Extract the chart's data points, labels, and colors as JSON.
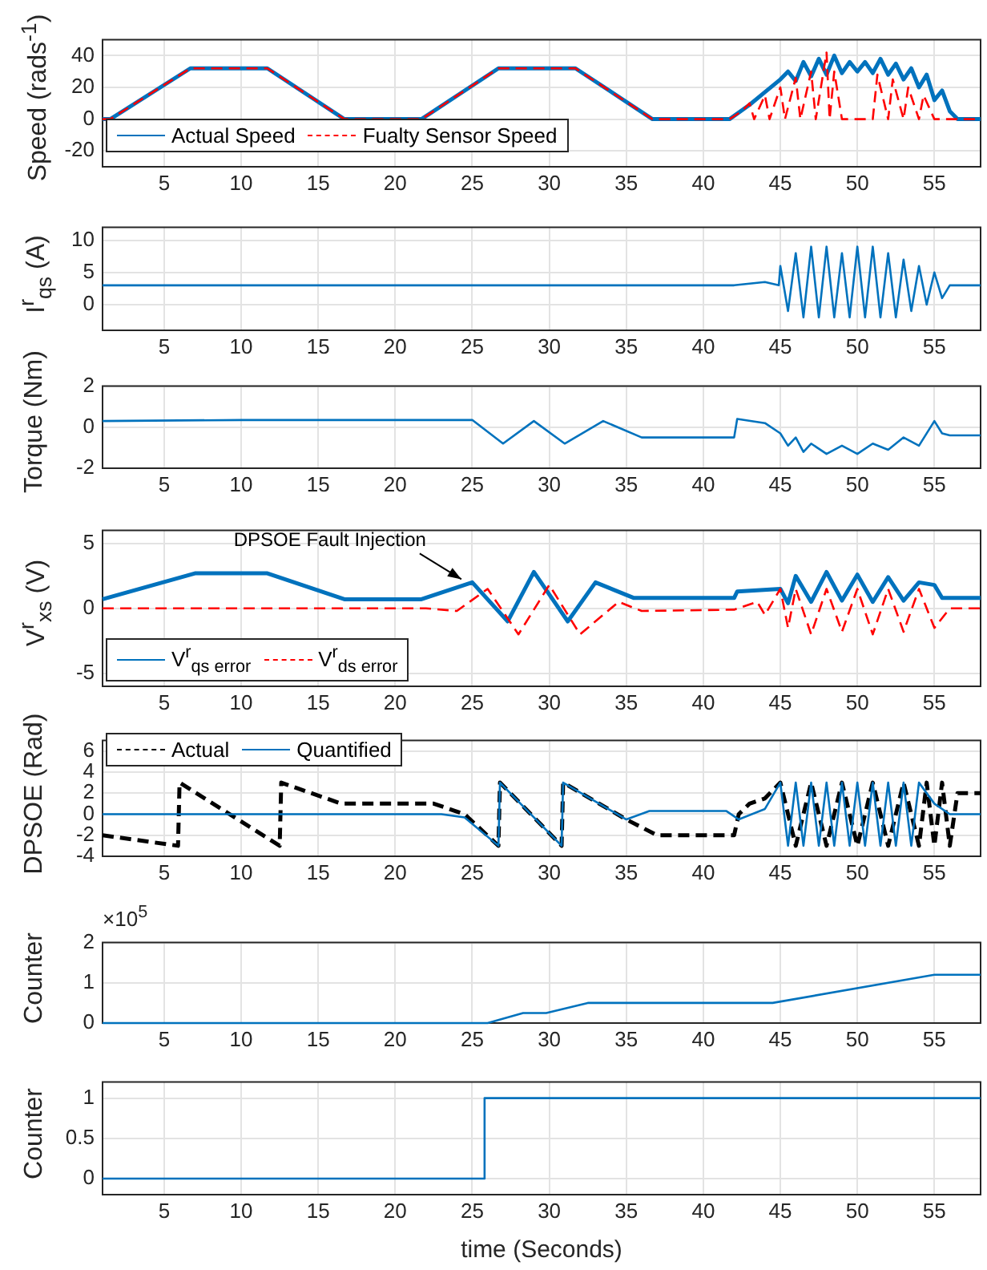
{
  "chart_data": [
    {
      "type": "line",
      "ylabel": "Speed (rads$^{-1}$)",
      "xlim": [
        1,
        58
      ],
      "xticks": [
        5,
        10,
        15,
        20,
        25,
        30,
        35,
        40,
        45,
        50,
        55
      ],
      "ylim": [
        -30,
        50
      ],
      "yticks": [
        -20,
        0,
        20,
        40
      ],
      "grid": true,
      "legend": "bottom left",
      "series": [
        {
          "name": "Actual Speed",
          "color": "#0072bd",
          "line_style": "solid",
          "x": [
            1,
            1.5,
            6.7,
            11.7,
            16.7,
            21.7,
            26.7,
            31.7,
            36.7,
            41.7,
            43,
            44,
            45,
            45.5,
            46,
            46.5,
            47,
            47.5,
            48,
            48.5,
            49,
            49.5,
            50,
            50.5,
            51,
            51.5,
            52,
            52.5,
            53,
            53.5,
            54,
            54.5,
            55,
            55.5,
            56,
            56.5,
            58
          ],
          "values": [
            0,
            0,
            32,
            32,
            0,
            0,
            32,
            32,
            0,
            0,
            9,
            17,
            25,
            30,
            24,
            36,
            27,
            38,
            28,
            40,
            29,
            36,
            30,
            36,
            29,
            38,
            28,
            35,
            25,
            32,
            20,
            28,
            12,
            18,
            5,
            0,
            0
          ]
        },
        {
          "name": "Fualty Sensor Speed",
          "color": "#ff0000",
          "line_style": "dashed",
          "x": [
            1,
            1.5,
            6.7,
            11.7,
            16.7,
            21.7,
            26.7,
            31.7,
            36.7,
            41.7,
            42.5,
            43,
            43.3,
            44,
            44.3,
            45,
            45.3,
            46,
            46.3,
            47,
            47.3,
            48,
            48.2,
            48.5,
            49,
            51,
            51.3,
            52,
            52.3,
            53,
            53.3,
            54,
            54.3,
            55,
            55.5,
            58
          ],
          "values": [
            0,
            0,
            32,
            32,
            0,
            0,
            32,
            32,
            0,
            0,
            5,
            10,
            0,
            15,
            0,
            20,
            0,
            26,
            0,
            30,
            0,
            42,
            0,
            30,
            0,
            0,
            28,
            0,
            25,
            0,
            20,
            0,
            15,
            0,
            0,
            0
          ]
        }
      ]
    },
    {
      "type": "line",
      "ylabel": "I$^{r}$$_{qs}$ (A)",
      "xlim": [
        1,
        58
      ],
      "xticks": [
        5,
        10,
        15,
        20,
        25,
        30,
        35,
        40,
        45,
        50,
        55
      ],
      "ylim": [
        -4,
        12
      ],
      "yticks": [
        0,
        5,
        10
      ],
      "grid": true,
      "series": [
        {
          "color": "#0072bd",
          "line_style": "solid",
          "x": [
            1,
            20,
            40,
            42,
            44,
            44.9,
            45,
            45.5,
            46,
            46.5,
            47,
            47.5,
            48,
            48.5,
            49,
            49.5,
            50,
            50.5,
            51,
            51.5,
            52,
            52.5,
            53,
            53.5,
            54,
            54.5,
            55,
            55.5,
            56,
            58
          ],
          "values": [
            3,
            3,
            3,
            3,
            3.5,
            3,
            6,
            -1,
            8,
            -2,
            9,
            -2,
            9,
            -2,
            8,
            -2,
            9,
            -2,
            9,
            -2,
            8,
            -2,
            7,
            -1,
            6,
            0,
            5,
            1,
            3,
            3
          ]
        }
      ]
    },
    {
      "type": "line",
      "ylabel": "Torque (Nm)",
      "xlim": [
        1,
        58
      ],
      "xticks": [
        5,
        10,
        15,
        20,
        25,
        30,
        35,
        40,
        45,
        50,
        55
      ],
      "ylim": [
        -2,
        2
      ],
      "yticks": [
        -2,
        0,
        2
      ],
      "grid": true,
      "series": [
        {
          "color": "#0072bd",
          "line_style": "solid",
          "x": [
            1,
            10,
            20,
            25,
            27,
            29,
            31,
            33.5,
            36,
            42,
            42.2,
            44,
            45,
            45.5,
            46,
            46.5,
            47,
            48,
            49,
            50,
            51,
            52,
            53,
            54,
            55,
            55.5,
            56,
            58
          ],
          "values": [
            0.3,
            0.35,
            0.35,
            0.35,
            -0.8,
            0.3,
            -0.8,
            0.3,
            -0.5,
            -0.5,
            0.4,
            0.2,
            -0.3,
            -0.9,
            -0.5,
            -1.2,
            -0.8,
            -1.3,
            -0.9,
            -1.3,
            -0.8,
            -1.1,
            -0.5,
            -0.9,
            0.3,
            -0.3,
            -0.4,
            -0.4
          ]
        }
      ]
    },
    {
      "type": "line",
      "ylabel": "V$^{r}$$_{xs}$ (V)",
      "xlim": [
        1,
        58
      ],
      "xticks": [
        5,
        10,
        15,
        20,
        25,
        30,
        35,
        40,
        45,
        50,
        55
      ],
      "ylim": [
        -6,
        6
      ],
      "yticks": [
        -5,
        0,
        5
      ],
      "grid": true,
      "legend": "bottom left",
      "annotations": [
        {
          "text": "DPSOE Fault Injection",
          "x": 24.5,
          "y": 2
        }
      ],
      "series": [
        {
          "name": "V$^{r}$$_{qs error}$",
          "color": "#0072bd",
          "line_style": "solid",
          "x": [
            1,
            7,
            11.7,
            16.7,
            21.7,
            25,
            27.3,
            29,
            31.2,
            33,
            35.5,
            42,
            42.2,
            45,
            45.5,
            46,
            47,
            48,
            49,
            50,
            51,
            52,
            53,
            54,
            55,
            55.5,
            58
          ],
          "values": [
            0.7,
            2.7,
            2.7,
            0.7,
            0.7,
            2.0,
            -1.0,
            2.8,
            -1.0,
            2.0,
            0.8,
            0.8,
            1.3,
            1.5,
            0.4,
            2.5,
            0.5,
            2.8,
            0.6,
            2.6,
            0.5,
            2.4,
            0.6,
            2.0,
            1.8,
            0.8,
            0.8
          ]
        },
        {
          "name": "V$^{r}$$_{ds error}$",
          "color": "#ff0000",
          "line_style": "dashed",
          "x": [
            1,
            22,
            24,
            26,
            28,
            30,
            32,
            34.5,
            36,
            42,
            43.5,
            44,
            45,
            45.5,
            46,
            47,
            48,
            49,
            50,
            51,
            52,
            53,
            54,
            55,
            56,
            58
          ],
          "values": [
            0,
            0,
            -0.2,
            1.5,
            -2.0,
            1.8,
            -2.0,
            0.5,
            -0.2,
            -0.1,
            0.5,
            -0.5,
            1.5,
            -1.5,
            1.5,
            -2.0,
            1.5,
            -1.8,
            1.5,
            -2.0,
            1.5,
            -1.8,
            1.5,
            -1.5,
            0,
            0
          ]
        }
      ]
    },
    {
      "type": "line",
      "ylabel": "DPSOE (Rad)",
      "xlim": [
        1,
        58
      ],
      "xticks": [
        5,
        10,
        15,
        20,
        25,
        30,
        35,
        40,
        45,
        50,
        55
      ],
      "ylim": [
        -4,
        7
      ],
      "yticks": [
        -4,
        -2,
        0,
        2,
        4,
        6
      ],
      "grid": true,
      "legend": "top left",
      "series": [
        {
          "name": "Actual",
          "color": "#000000",
          "line_style": "dashed",
          "x": [
            1,
            5.9,
            6.0,
            12.5,
            12.6,
            16.5,
            22.5,
            24.5,
            26.7,
            26.8,
            30.8,
            30.9,
            35,
            37,
            42,
            42.3,
            43,
            44,
            45,
            46,
            47,
            48,
            49,
            50,
            51,
            52,
            53,
            54,
            54.5,
            55,
            55.5,
            56,
            56.5,
            58
          ],
          "values": [
            -2,
            -3,
            3,
            -3,
            3,
            1,
            1,
            0,
            -3,
            3,
            -3,
            3,
            -0.5,
            -2,
            -2,
            0,
            1,
            1.5,
            3,
            -3,
            3,
            -3,
            3,
            -3,
            3,
            -3,
            3,
            -3,
            3,
            -3,
            3,
            -3,
            2,
            2
          ]
        },
        {
          "name": "Quantified",
          "color": "#0072bd",
          "line_style": "solid",
          "x": [
            1,
            23,
            24.5,
            26.7,
            26.8,
            30.8,
            30.9,
            35,
            36.5,
            41.5,
            42.3,
            44,
            45,
            45.5,
            46,
            46.5,
            47,
            47.5,
            48,
            48.5,
            49,
            49.5,
            50,
            50.5,
            51,
            51.5,
            52,
            52.5,
            53,
            53.5,
            54,
            55,
            56,
            58
          ],
          "values": [
            0,
            0,
            -0.3,
            -3,
            3,
            -3,
            3,
            -0.5,
            0.3,
            0.3,
            -0.5,
            0.5,
            3,
            -3,
            3,
            -3,
            3,
            -3,
            3,
            -3,
            3,
            -3,
            3,
            -3,
            3,
            -3,
            3,
            -3,
            3,
            -3,
            3,
            1,
            0,
            0
          ]
        }
      ]
    },
    {
      "type": "line",
      "ylabel": "Counter",
      "xlim": [
        1,
        58
      ],
      "xticks": [
        5,
        10,
        15,
        20,
        25,
        30,
        35,
        40,
        45,
        50,
        55
      ],
      "ylim": [
        0,
        2
      ],
      "yticks": [
        0,
        1,
        2
      ],
      "grid": true,
      "annotations": [
        "×10$^{5}$"
      ],
      "series": [
        {
          "color": "#0072bd",
          "line_style": "solid",
          "x": [
            1,
            26,
            28.3,
            29.8,
            32.5,
            44.5,
            55,
            58
          ],
          "values": [
            0,
            0,
            0.25,
            0.25,
            0.5,
            0.5,
            1.2,
            1.2
          ]
        }
      ]
    },
    {
      "type": "line",
      "ylabel": "Counter",
      "xlabel": "time (Seconds)",
      "xlim": [
        1,
        58
      ],
      "xticks": [
        5,
        10,
        15,
        20,
        25,
        30,
        35,
        40,
        45,
        50,
        55
      ],
      "ylim": [
        -0.2,
        1.2
      ],
      "yticks": [
        0,
        0.5,
        1
      ],
      "grid": true,
      "series": [
        {
          "color": "#0072bd",
          "line_style": "solid",
          "x": [
            1,
            25.8,
            25.8,
            58
          ],
          "values": [
            0,
            0,
            1,
            1
          ]
        }
      ]
    }
  ]
}
